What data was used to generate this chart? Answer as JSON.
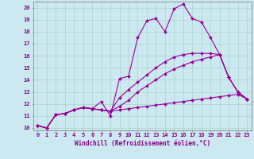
{
  "xlabel": "Windchill (Refroidissement éolien,°C)",
  "background_color": "#cce8f0",
  "grid_color": "#aad4cc",
  "line_color": "#990099",
  "xlim": [
    -0.5,
    23.5
  ],
  "ylim": [
    9.8,
    20.5
  ],
  "xticks": [
    0,
    1,
    2,
    3,
    4,
    5,
    6,
    7,
    8,
    9,
    10,
    11,
    12,
    13,
    14,
    15,
    16,
    17,
    18,
    19,
    20,
    21,
    22,
    23
  ],
  "yticks": [
    10,
    11,
    12,
    13,
    14,
    15,
    16,
    17,
    18,
    19,
    20
  ],
  "series": [
    [
      10.2,
      10.0,
      11.1,
      11.2,
      11.5,
      11.7,
      11.6,
      12.2,
      11.0,
      14.1,
      14.3,
      17.5,
      18.9,
      19.1,
      18.0,
      19.9,
      20.3,
      19.1,
      18.8,
      17.5,
      16.1,
      14.2,
      13.0,
      12.4
    ],
    [
      10.2,
      10.0,
      11.1,
      11.2,
      11.5,
      11.7,
      11.6,
      11.5,
      11.4,
      11.5,
      11.6,
      11.7,
      11.8,
      11.9,
      12.0,
      12.1,
      12.2,
      12.3,
      12.4,
      12.5,
      12.6,
      12.7,
      12.8,
      12.4
    ],
    [
      10.2,
      10.0,
      11.1,
      11.2,
      11.5,
      11.7,
      11.6,
      11.5,
      11.4,
      12.5,
      13.2,
      13.8,
      14.4,
      15.0,
      15.5,
      15.9,
      16.1,
      16.2,
      16.2,
      16.2,
      16.1,
      14.2,
      13.0,
      12.4
    ],
    [
      10.2,
      10.0,
      11.1,
      11.2,
      11.5,
      11.7,
      11.6,
      11.5,
      11.4,
      11.8,
      12.3,
      13.0,
      13.5,
      14.0,
      14.5,
      14.9,
      15.2,
      15.5,
      15.7,
      15.9,
      16.1,
      14.2,
      13.0,
      12.4
    ]
  ],
  "marker": "D",
  "marker_size": 2.0,
  "line_width": 0.8,
  "xlabel_fontsize": 5.5,
  "tick_fontsize": 5.0,
  "tick_color": "#880088",
  "spine_color": "#888888"
}
